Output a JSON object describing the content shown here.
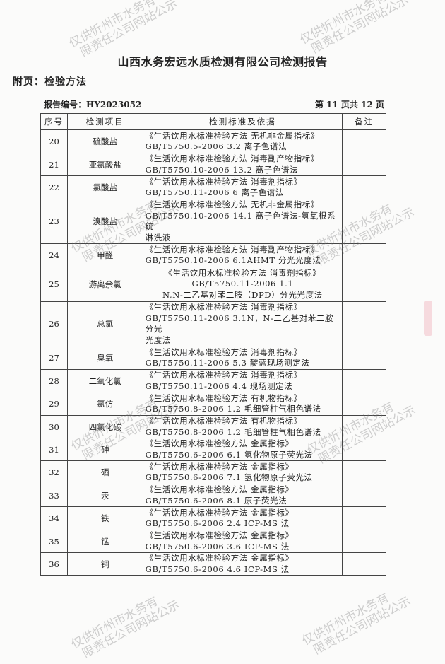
{
  "header": {
    "title": "山西水务宏远水质检测有限公司检测报告",
    "subtitle": "附页：检验方法",
    "report_no": "报告编号：HY2023052",
    "page_info": "第 11 页共 12 页"
  },
  "table": {
    "columns": [
      "序号",
      "检测项目",
      "检测标准及依据",
      "备注"
    ],
    "rows": [
      {
        "seq": "20",
        "item": "硫酸盐",
        "std": [
          "《生活饮用水标准检验方法 无机非金属指标》",
          "GB/T5750.5-2006  3.2 离子色谱法"
        ],
        "note": ""
      },
      {
        "seq": "21",
        "item": "亚氯酸盐",
        "std": [
          "《生活饮用水标准检验方法 消毒副产物指标》",
          "GB/T5750.10-2006  13.2 离子色谱法"
        ],
        "note": ""
      },
      {
        "seq": "22",
        "item": "氯酸盐",
        "std": [
          "《生活饮用水标准检验方法  消毒剂指标》",
          "GB/T5750.11-2006  6 离子色谱法"
        ],
        "note": ""
      },
      {
        "seq": "23",
        "item": "溴酸盐",
        "std": [
          "《生活饮用水标准检验方法 无机非金属指标》",
          "GB/T5750.10-2006  14.1 离子色谱法-氢氧根系统",
          "淋洗液"
        ],
        "note": ""
      },
      {
        "seq": "24",
        "item": "甲醛",
        "std": [
          "《生活饮用水标准检验方法 消毒副产物指标》",
          "GB/T5750.10-2006  6.1AHMT 分光光度法"
        ],
        "note": ""
      },
      {
        "seq": "25",
        "item": "游离余氯",
        "std": [
          "《生活饮用水标准检验方法 消毒剂指标》",
          "GB/T5750.11-2006 1.1",
          "N,N-二乙基对苯二胺（DPD）分光光度法"
        ],
        "note": "",
        "centered": true
      },
      {
        "seq": "26",
        "item": "总氯",
        "std": [
          "《生活饮用水标准检验方法  消毒剂指标》",
          "GB/T5750.11-2006  3.1N，N-二乙基对苯二胺分光",
          "光度法"
        ],
        "note": ""
      },
      {
        "seq": "27",
        "item": "臭氧",
        "std": [
          "《生活饮用水标准检验方法  消毒剂指标》",
          "GB/T5750.11-2006  5.3 靛蓝现场测定法"
        ],
        "note": ""
      },
      {
        "seq": "28",
        "item": "二氧化氯",
        "std": [
          "《生活饮用水标准检验方法  消毒剂指标》",
          "GB/T5750.11-2006  4.4 现场测定法"
        ],
        "note": ""
      },
      {
        "seq": "29",
        "item": "氯仿",
        "std": [
          "《生活饮用水标准检验方法  有机物指标》",
          "GB/T5750.8-2006  1.2 毛细管柱气相色谱法"
        ],
        "note": ""
      },
      {
        "seq": "30",
        "item": "四氯化碳",
        "std": [
          "《生活饮用水标准检验方法  有机物指标》",
          "GB/T5750.8-2006  1.2 毛细管柱气相色谱法"
        ],
        "note": ""
      },
      {
        "seq": "31",
        "item": "砷",
        "std": [
          "《生活饮用水标准检验方法  金属指标》",
          "GB/T5750.6-2006  6.1 氢化物原子荧光法"
        ],
        "note": ""
      },
      {
        "seq": "32",
        "item": "硒",
        "std": [
          "《生活饮用水标准检验方法  金属指标》",
          "GB/T5750.6-2006  7.1 氢化物原子荧光法"
        ],
        "note": ""
      },
      {
        "seq": "33",
        "item": "汞",
        "std": [
          "《生活饮用水标准检验方法  金属指标》",
          "GB/T5750.6-2006  8.1 原子荧光法"
        ],
        "note": ""
      },
      {
        "seq": "34",
        "item": "铁",
        "std": [
          "《生活饮用水标准检验方法  金属指标》",
          "GB/T5750.6-2006  2.4 ICP-MS 法"
        ],
        "note": ""
      },
      {
        "seq": "35",
        "item": "锰",
        "std": [
          "《生活饮用水标准检验方法  金属指标》",
          "GB/T5750.6-2006  3.6 ICP-MS 法"
        ],
        "note": ""
      },
      {
        "seq": "36",
        "item": "铜",
        "std": [
          "《生活饮用水标准检验方法  金属指标》",
          "GB/T5750.6-2006  4.6 ICP-MS 法"
        ],
        "note": ""
      }
    ]
  },
  "watermark": {
    "line1": "仅供忻州市水务有",
    "line2": "限责任公司网站公示"
  }
}
